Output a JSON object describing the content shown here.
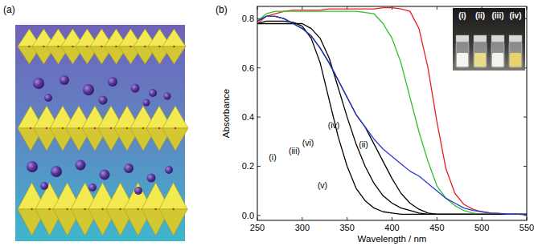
{
  "panel_a": {
    "label": "(a)"
  },
  "chart_data": {
    "type": "line",
    "panel_label": "(b)",
    "x_label": "Wavelength / nm",
    "y_label": "Absorbance",
    "x": [
      250,
      260,
      270,
      280,
      290,
      300,
      310,
      320,
      330,
      340,
      350,
      360,
      370,
      380,
      390,
      400,
      410,
      420,
      430,
      440,
      450,
      460,
      470,
      480,
      490,
      500,
      510,
      520,
      530,
      540,
      550
    ],
    "series": [
      {
        "name": "(i)",
        "color": "#000000",
        "values": [
          0.78,
          0.79,
          0.79,
          0.79,
          0.785,
          0.77,
          0.72,
          0.62,
          0.47,
          0.32,
          0.2,
          0.11,
          0.06,
          0.03,
          0.015,
          0.01,
          0.005,
          0.005,
          0.005,
          0.005,
          0.005,
          0.005,
          0.005,
          0.005,
          0.005,
          0.005,
          0.005,
          0.005,
          0.005,
          0.005,
          0.005
        ]
      },
      {
        "name": "(ii)",
        "color": "#e8201e",
        "values": [
          0.78,
          0.81,
          0.82,
          0.83,
          0.835,
          0.835,
          0.835,
          0.835,
          0.84,
          0.84,
          0.84,
          0.84,
          0.84,
          0.84,
          0.845,
          0.845,
          0.84,
          0.83,
          0.76,
          0.6,
          0.38,
          0.19,
          0.09,
          0.045,
          0.025,
          0.015,
          0.01,
          0.008,
          0.005,
          0.005,
          0.003
        ]
      },
      {
        "name": "(iii)",
        "color": "#000000",
        "values": [
          0.78,
          0.78,
          0.78,
          0.78,
          0.78,
          0.78,
          0.76,
          0.72,
          0.64,
          0.52,
          0.4,
          0.29,
          0.2,
          0.13,
          0.08,
          0.05,
          0.03,
          0.02,
          0.01,
          0.005,
          0.005,
          0.005,
          0.005,
          0.005,
          0.005,
          0.005,
          0.005,
          0.005,
          0.005,
          0.005,
          0.005
        ]
      },
      {
        "name": "(iv)",
        "color": "#2fc02a",
        "values": [
          0.79,
          0.82,
          0.83,
          0.83,
          0.83,
          0.83,
          0.83,
          0.83,
          0.83,
          0.83,
          0.83,
          0.83,
          0.825,
          0.82,
          0.78,
          0.72,
          0.62,
          0.48,
          0.34,
          0.22,
          0.12,
          0.07,
          0.04,
          0.02,
          0.01,
          0.005,
          0.005,
          0.005,
          0.005,
          0.005,
          0.005
        ]
      },
      {
        "name": "(v)",
        "color": "#000000",
        "values": [
          0.79,
          0.81,
          0.81,
          0.8,
          0.78,
          0.76,
          0.73,
          0.68,
          0.62,
          0.55,
          0.48,
          0.41,
          0.36,
          0.29,
          0.22,
          0.15,
          0.09,
          0.05,
          0.025,
          0.01,
          0.005,
          0.005,
          0.005,
          0.005,
          0.005,
          0.005,
          0.005,
          0.005,
          0.005,
          0.005,
          0.005
        ]
      },
      {
        "name": "(vi)",
        "color": "#2a3bd0",
        "values": [
          0.79,
          0.81,
          0.81,
          0.8,
          0.78,
          0.76,
          0.73,
          0.68,
          0.62,
          0.55,
          0.48,
          0.41,
          0.36,
          0.31,
          0.27,
          0.24,
          0.21,
          0.18,
          0.16,
          0.13,
          0.1,
          0.07,
          0.05,
          0.03,
          0.02,
          0.015,
          0.01,
          0.008,
          0.005,
          0.005,
          0.003
        ]
      }
    ],
    "xlim": [
      250,
      550
    ],
    "ylim": [
      -0.02,
      0.85
    ],
    "xticks": [
      250,
      300,
      350,
      400,
      450,
      500,
      550
    ],
    "yticks": [
      {
        "value": 0,
        "label": "0.0"
      },
      0.2,
      0.4,
      0.6,
      0.8
    ],
    "grid": false,
    "inset_labels": [
      "(i)",
      "(ii)",
      "(iii)",
      "(iv)"
    ]
  }
}
